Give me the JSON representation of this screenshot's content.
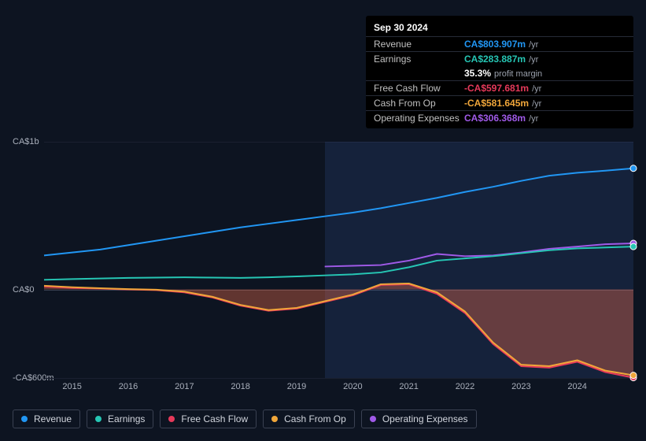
{
  "tooltip": {
    "date": "Sep 30 2024",
    "rows": [
      {
        "label": "Revenue",
        "value": "CA$803.907m",
        "unit": "/yr",
        "color": "#2196f3"
      },
      {
        "label": "Earnings",
        "value": "CA$283.887m",
        "unit": "/yr",
        "color": "#26c6b4"
      },
      {
        "label": "",
        "value": "35.3%",
        "unit": "profit margin",
        "color": "#ffffff"
      },
      {
        "label": "Free Cash Flow",
        "value": "-CA$597.681m",
        "unit": "/yr",
        "color": "#e6395a"
      },
      {
        "label": "Cash From Op",
        "value": "-CA$581.645m",
        "unit": "/yr",
        "color": "#f0a63a"
      },
      {
        "label": "Operating Expenses",
        "value": "CA$306.368m",
        "unit": "/yr",
        "color": "#a05ae8"
      }
    ]
  },
  "chart": {
    "type": "line-area",
    "background_color": "#0d1421",
    "grid_color": "#1a2030",
    "axis_color": "#2a3140",
    "text_color": "#aab0bc",
    "x": {
      "min": 2014.5,
      "max": 2025.0,
      "ticks": [
        2015,
        2016,
        2017,
        2018,
        2019,
        2020,
        2021,
        2022,
        2023,
        2024
      ],
      "tick_labels": [
        "2015",
        "2016",
        "2017",
        "2018",
        "2019",
        "2020",
        "2021",
        "2022",
        "2023",
        "2024"
      ]
    },
    "y": {
      "min": -600,
      "max": 1000,
      "unit": "CA$ m",
      "ticks": [
        1000,
        0,
        -600
      ],
      "tick_labels": [
        "CA$1b",
        "CA$0",
        "-CA$600m"
      ]
    },
    "highlight_from_x": 2019.5,
    "series": [
      {
        "name": "Revenue",
        "color": "#2196f3",
        "width": 2,
        "fill": false,
        "marker_end": true,
        "points": [
          [
            2014.5,
            230
          ],
          [
            2015,
            250
          ],
          [
            2015.5,
            270
          ],
          [
            2016,
            300
          ],
          [
            2016.5,
            330
          ],
          [
            2017,
            360
          ],
          [
            2017.5,
            390
          ],
          [
            2018,
            420
          ],
          [
            2018.5,
            445
          ],
          [
            2019,
            470
          ],
          [
            2019.5,
            495
          ],
          [
            2020,
            520
          ],
          [
            2020.5,
            550
          ],
          [
            2021,
            585
          ],
          [
            2021.5,
            620
          ],
          [
            2022,
            660
          ],
          [
            2022.5,
            695
          ],
          [
            2023,
            735
          ],
          [
            2023.5,
            770
          ],
          [
            2024,
            790
          ],
          [
            2024.5,
            804
          ],
          [
            2025.0,
            820
          ]
        ]
      },
      {
        "name": "Operating Expenses",
        "color": "#a05ae8",
        "width": 2,
        "fill": false,
        "marker_end": true,
        "points": [
          [
            2019.5,
            155
          ],
          [
            2020,
            160
          ],
          [
            2020.5,
            165
          ],
          [
            2021,
            195
          ],
          [
            2021.5,
            240
          ],
          [
            2022,
            225
          ],
          [
            2022.5,
            230
          ],
          [
            2023,
            250
          ],
          [
            2023.5,
            275
          ],
          [
            2024,
            290
          ],
          [
            2024.5,
            306
          ],
          [
            2025.0,
            312
          ]
        ]
      },
      {
        "name": "Earnings",
        "color": "#26c6b4",
        "width": 2,
        "fill": false,
        "marker_end": true,
        "points": [
          [
            2014.5,
            65
          ],
          [
            2015,
            70
          ],
          [
            2015.5,
            74
          ],
          [
            2016,
            78
          ],
          [
            2016.5,
            80
          ],
          [
            2017,
            82
          ],
          [
            2017.5,
            80
          ],
          [
            2018,
            78
          ],
          [
            2018.5,
            82
          ],
          [
            2019,
            88
          ],
          [
            2019.5,
            95
          ],
          [
            2020,
            102
          ],
          [
            2020.5,
            115
          ],
          [
            2021,
            150
          ],
          [
            2021.5,
            195
          ],
          [
            2022,
            210
          ],
          [
            2022.5,
            225
          ],
          [
            2023,
            245
          ],
          [
            2023.5,
            265
          ],
          [
            2024,
            278
          ],
          [
            2024.5,
            284
          ],
          [
            2025.0,
            290
          ]
        ]
      },
      {
        "name": "Free Cash Flow",
        "color": "#e6395a",
        "width": 2,
        "fill": true,
        "fill_opacity": 0.25,
        "marker_end": true,
        "points": [
          [
            2014.5,
            20
          ],
          [
            2015,
            10
          ],
          [
            2015.5,
            5
          ],
          [
            2016,
            0
          ],
          [
            2016.5,
            -5
          ],
          [
            2017,
            -20
          ],
          [
            2017.5,
            -55
          ],
          [
            2018,
            -110
          ],
          [
            2018.5,
            -145
          ],
          [
            2019,
            -130
          ],
          [
            2019.5,
            -85
          ],
          [
            2020,
            -40
          ],
          [
            2020.5,
            30
          ],
          [
            2021,
            35
          ],
          [
            2021.5,
            -30
          ],
          [
            2022,
            -160
          ],
          [
            2022.5,
            -370
          ],
          [
            2023,
            -520
          ],
          [
            2023.5,
            -530
          ],
          [
            2024,
            -490
          ],
          [
            2024.5,
            -560
          ],
          [
            2025.0,
            -598
          ]
        ]
      },
      {
        "name": "Cash From Op",
        "color": "#f0a63a",
        "width": 2,
        "fill": true,
        "fill_opacity": 0.18,
        "marker_end": true,
        "points": [
          [
            2014.5,
            25
          ],
          [
            2015,
            15
          ],
          [
            2015.5,
            8
          ],
          [
            2016,
            2
          ],
          [
            2016.5,
            -2
          ],
          [
            2017,
            -15
          ],
          [
            2017.5,
            -50
          ],
          [
            2018,
            -105
          ],
          [
            2018.5,
            -140
          ],
          [
            2019,
            -125
          ],
          [
            2019.5,
            -80
          ],
          [
            2020,
            -35
          ],
          [
            2020.5,
            35
          ],
          [
            2021,
            40
          ],
          [
            2021.5,
            -20
          ],
          [
            2022,
            -150
          ],
          [
            2022.5,
            -360
          ],
          [
            2023,
            -510
          ],
          [
            2023.5,
            -520
          ],
          [
            2024,
            -480
          ],
          [
            2024.5,
            -550
          ],
          [
            2025.0,
            -582
          ]
        ]
      }
    ],
    "legend": [
      {
        "label": "Revenue",
        "color": "#2196f3"
      },
      {
        "label": "Earnings",
        "color": "#26c6b4"
      },
      {
        "label": "Free Cash Flow",
        "color": "#e6395a"
      },
      {
        "label": "Cash From Op",
        "color": "#f0a63a"
      },
      {
        "label": "Operating Expenses",
        "color": "#a05ae8"
      }
    ]
  }
}
